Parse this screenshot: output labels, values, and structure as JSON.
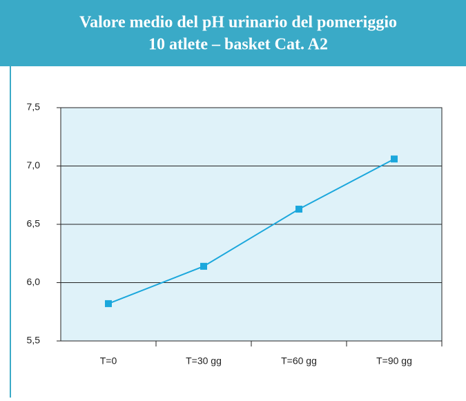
{
  "chart_data": {
    "type": "line",
    "title": "Valore medio del pH urinario del pomeriggio",
    "subtitle": "10 atlete – basket Cat. A2",
    "categories": [
      "T=0",
      "T=30 gg",
      "T=60 gg",
      "T=90 gg"
    ],
    "series": [
      {
        "name": "pH",
        "color": "#1ba7dc",
        "values": [
          5.82,
          6.14,
          6.63,
          7.06
        ]
      }
    ],
    "ylim": [
      5.5,
      7.5
    ],
    "yticks": [
      {
        "value": 5.5,
        "label": "5,5"
      },
      {
        "value": 6.0,
        "label": "6,0"
      },
      {
        "value": 6.5,
        "label": "6,5"
      },
      {
        "value": 7.0,
        "label": "7,0"
      },
      {
        "value": 7.5,
        "label": "7,5"
      }
    ],
    "grid": true
  }
}
